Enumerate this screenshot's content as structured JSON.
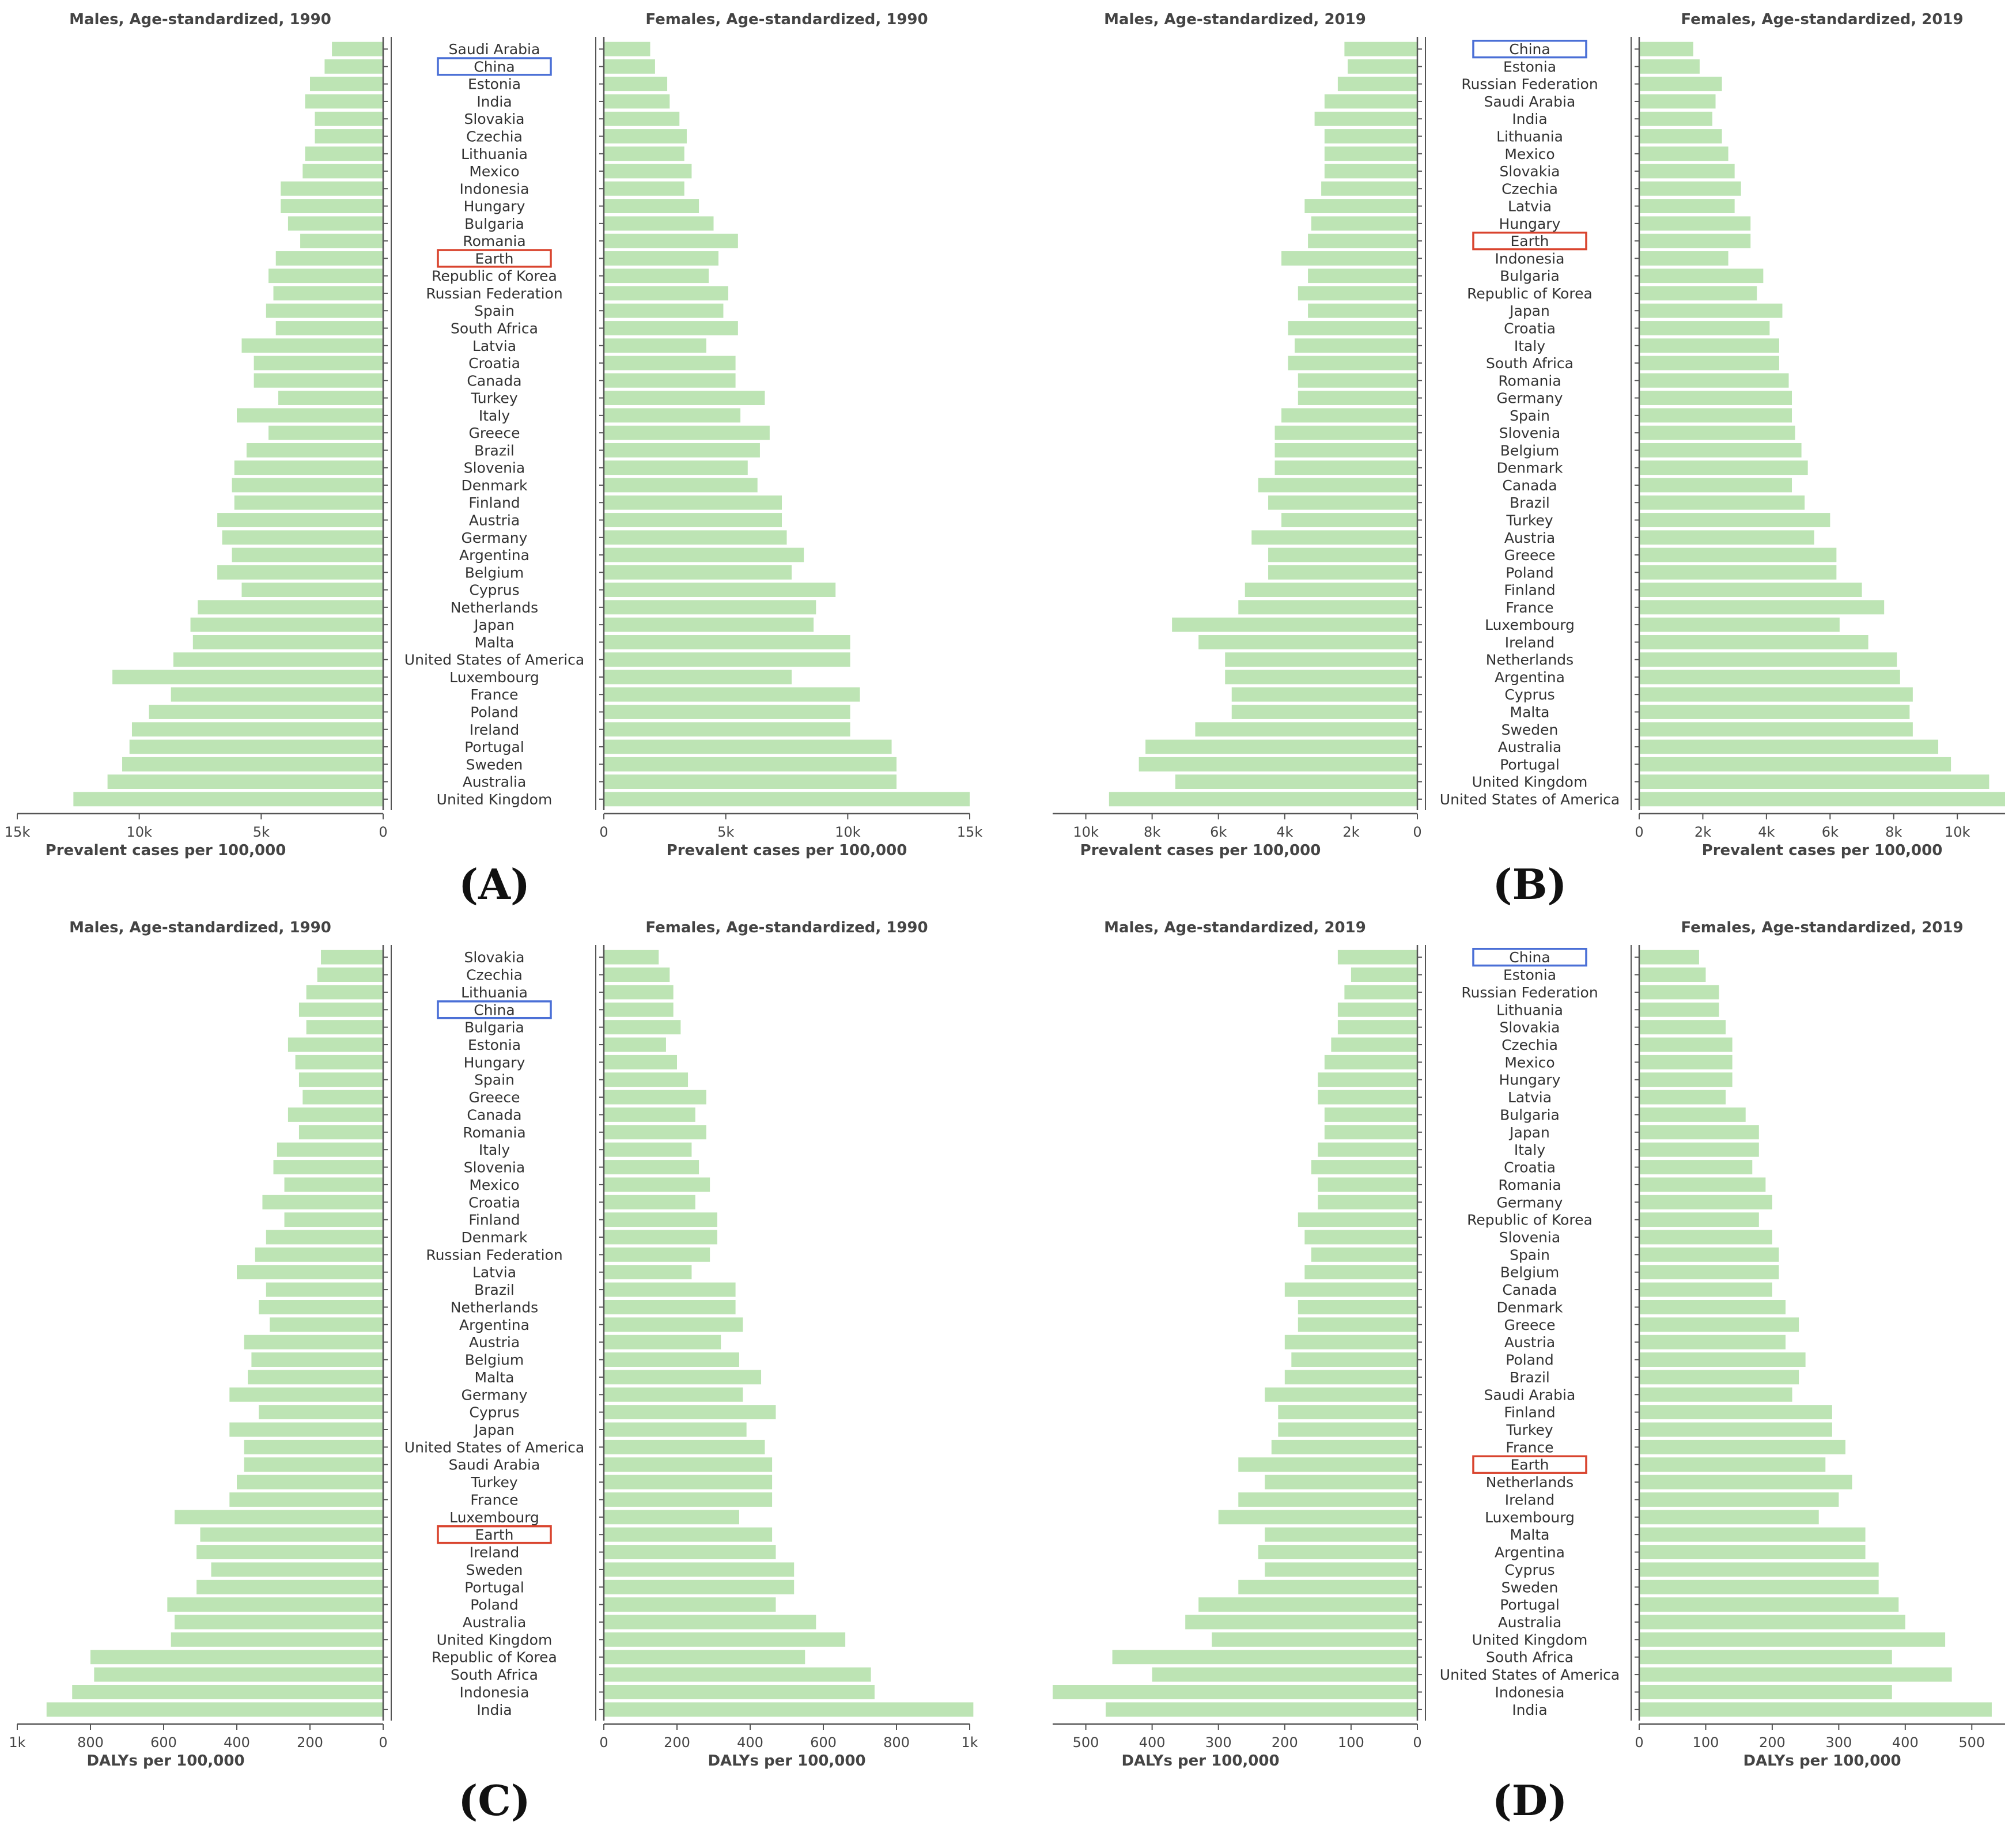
{
  "colors": {
    "bar": "#bde4b4",
    "axis": "#555555",
    "china_box": "#4a6fd6",
    "earth_box": "#d9442e",
    "text": "#333333"
  },
  "x_ticks": {
    "A": [
      {
        "value": 15000,
        "label": "15k"
      },
      {
        "value": 10000,
        "label": "10k"
      },
      {
        "value": 5000,
        "label": "5k"
      },
      {
        "value": 0,
        "label": "0"
      }
    ],
    "B_m": [
      {
        "value": 10000,
        "label": "10k"
      },
      {
        "value": 8000,
        "label": "8k"
      },
      {
        "value": 6000,
        "label": "6k"
      },
      {
        "value": 4000,
        "label": "4k"
      },
      {
        "value": 2000,
        "label": "2k"
      },
      {
        "value": 0,
        "label": "0"
      }
    ],
    "B_f": [
      {
        "value": 0,
        "label": "0"
      },
      {
        "value": 2000,
        "label": "2k"
      },
      {
        "value": 4000,
        "label": "4k"
      },
      {
        "value": 6000,
        "label": "6k"
      },
      {
        "value": 8000,
        "label": "8k"
      },
      {
        "value": 10000,
        "label": "10k"
      }
    ],
    "A_f": [
      {
        "value": 0,
        "label": "0"
      },
      {
        "value": 5000,
        "label": "5k"
      },
      {
        "value": 10000,
        "label": "10k"
      },
      {
        "value": 15000,
        "label": "15k"
      }
    ],
    "C_m": [
      {
        "value": 1000,
        "label": "1k"
      },
      {
        "value": 800,
        "label": "800"
      },
      {
        "value": 600,
        "label": "600"
      },
      {
        "value": 400,
        "label": "400"
      },
      {
        "value": 200,
        "label": "200"
      },
      {
        "value": 0,
        "label": "0"
      }
    ],
    "C_f": [
      {
        "value": 0,
        "label": "0"
      },
      {
        "value": 200,
        "label": "200"
      },
      {
        "value": 400,
        "label": "400"
      },
      {
        "value": 600,
        "label": "600"
      },
      {
        "value": 800,
        "label": "800"
      },
      {
        "value": 1000,
        "label": "1k"
      }
    ],
    "D_m": [
      {
        "value": 500,
        "label": "500"
      },
      {
        "value": 400,
        "label": "400"
      },
      {
        "value": 300,
        "label": "300"
      },
      {
        "value": 200,
        "label": "200"
      },
      {
        "value": 100,
        "label": "100"
      },
      {
        "value": 0,
        "label": "0"
      }
    ],
    "D_f": [
      {
        "value": 0,
        "label": "0"
      },
      {
        "value": 100,
        "label": "100"
      },
      {
        "value": 200,
        "label": "200"
      },
      {
        "value": 300,
        "label": "300"
      },
      {
        "value": 400,
        "label": "400"
      },
      {
        "value": 500,
        "label": "500"
      }
    ]
  },
  "chart_data": [
    {
      "type": "bar",
      "panel_label": "(A)",
      "metric": "Prevalent cases per 100,000",
      "xlabel_males": "Prevalent cases per 100,000",
      "xlabel_females": "Prevalent cases per 100,000",
      "title_males": "Males, Age-standardized, 1990",
      "title_females": "Females, Age-standardized, 1990",
      "xlim_males": [
        15000,
        0
      ],
      "xlim_females": [
        0,
        15000
      ],
      "highlight_china": "China",
      "highlight_earth": "Earth",
      "categories": [
        "Saudi Arabia",
        "China",
        "Estonia",
        "India",
        "Slovakia",
        "Czechia",
        "Lithuania",
        "Mexico",
        "Indonesia",
        "Hungary",
        "Bulgaria",
        "Romania",
        "Earth",
        "Republic of Korea",
        "Russian Federation",
        "Spain",
        "South Africa",
        "Latvia",
        "Croatia",
        "Canada",
        "Turkey",
        "Italy",
        "Greece",
        "Brazil",
        "Slovenia",
        "Denmark",
        "Finland",
        "Austria",
        "Germany",
        "Argentina",
        "Belgium",
        "Cyprus",
        "Netherlands",
        "Japan",
        "Malta",
        "United States of America",
        "Luxembourg",
        "France",
        "Poland",
        "Ireland",
        "Portugal",
        "Sweden",
        "Australia",
        "United Kingdom"
      ],
      "series": [
        {
          "name": "Males",
          "values": [
            2100,
            2400,
            3000,
            3200,
            2800,
            2800,
            3200,
            3300,
            4200,
            4200,
            3900,
            3400,
            4400,
            4700,
            4500,
            4800,
            4400,
            5800,
            5300,
            5300,
            4300,
            6000,
            4700,
            5600,
            6100,
            6200,
            6100,
            6800,
            6600,
            6200,
            6800,
            5800,
            7600,
            7900,
            7800,
            8600,
            11100,
            8700,
            9600,
            10300,
            10400,
            10700,
            11300,
            12700
          ]
        },
        {
          "name": "Females",
          "values": [
            1900,
            2100,
            2600,
            2700,
            3100,
            3400,
            3300,
            3600,
            3300,
            3900,
            4500,
            5500,
            4700,
            4300,
            5100,
            4900,
            5500,
            4200,
            5400,
            5400,
            6600,
            5600,
            6800,
            6400,
            5900,
            6300,
            7300,
            7300,
            7500,
            8200,
            7700,
            9500,
            8700,
            8600,
            10100,
            10100,
            7700,
            10500,
            10100,
            10100,
            11800,
            12000,
            12000,
            15000
          ]
        }
      ]
    },
    {
      "type": "bar",
      "panel_label": "(B)",
      "metric": "Prevalent cases per 100,000",
      "xlabel_males": "Prevalent cases per 100,000",
      "xlabel_females": "Prevalent cases per 100,000",
      "title_males": "Males, Age-standardized, 2019",
      "title_females": "Females, Age-standardized, 2019",
      "xlim_males": [
        11000,
        0
      ],
      "xlim_females": [
        0,
        11500
      ],
      "highlight_china": "China",
      "highlight_earth": "Earth",
      "categories": [
        "China",
        "Estonia",
        "Russian Federation",
        "Saudi Arabia",
        "India",
        "Lithuania",
        "Mexico",
        "Slovakia",
        "Czechia",
        "Latvia",
        "Hungary",
        "Earth",
        "Indonesia",
        "Bulgaria",
        "Republic of Korea",
        "Japan",
        "Croatia",
        "Italy",
        "South Africa",
        "Romania",
        "Germany",
        "Spain",
        "Slovenia",
        "Belgium",
        "Denmark",
        "Canada",
        "Brazil",
        "Turkey",
        "Austria",
        "Greece",
        "Poland",
        "Finland",
        "France",
        "Luxembourg",
        "Ireland",
        "Netherlands",
        "Argentina",
        "Cyprus",
        "Malta",
        "Sweden",
        "Australia",
        "Portugal",
        "United Kingdom",
        "United States of America"
      ],
      "series": [
        {
          "name": "Males",
          "values": [
            2200,
            2100,
            2400,
            2800,
            3100,
            2800,
            2800,
            2800,
            2900,
            3400,
            3200,
            3300,
            4100,
            3300,
            3600,
            3300,
            3900,
            3700,
            3900,
            3600,
            3600,
            4100,
            4300,
            4300,
            4300,
            4800,
            4500,
            4100,
            5000,
            4500,
            4500,
            5200,
            5400,
            7400,
            6600,
            5800,
            5800,
            5600,
            5600,
            6700,
            8200,
            8400,
            7300,
            9300
          ]
        },
        {
          "name": "Females",
          "values": [
            1700,
            1900,
            2600,
            2400,
            2300,
            2600,
            2800,
            3000,
            3200,
            3000,
            3500,
            3500,
            2800,
            3900,
            3700,
            4500,
            4100,
            4400,
            4400,
            4700,
            4800,
            4800,
            4900,
            5100,
            5300,
            4800,
            5200,
            6000,
            5500,
            6200,
            6200,
            7000,
            7700,
            6300,
            7200,
            8100,
            8200,
            8600,
            8500,
            8600,
            9400,
            9800,
            11000,
            11500
          ]
        }
      ]
    },
    {
      "type": "bar",
      "panel_label": "(C)",
      "metric": "DALYs per 100,000",
      "xlabel_males": "DALYs per 100,000",
      "xlabel_females": "DALYs per 100,000",
      "title_males": "Males, Age-standardized, 1990",
      "title_females": "Females, Age-standardized, 1990",
      "xlim_males": [
        1000,
        0
      ],
      "xlim_females": [
        0,
        1000
      ],
      "highlight_china": "China",
      "highlight_earth": "Earth",
      "categories": [
        "Slovakia",
        "Czechia",
        "Lithuania",
        "China",
        "Bulgaria",
        "Estonia",
        "Hungary",
        "Spain",
        "Greece",
        "Canada",
        "Romania",
        "Italy",
        "Slovenia",
        "Mexico",
        "Croatia",
        "Finland",
        "Denmark",
        "Russian Federation",
        "Latvia",
        "Brazil",
        "Netherlands",
        "Argentina",
        "Austria",
        "Belgium",
        "Malta",
        "Germany",
        "Cyprus",
        "Japan",
        "United States of America",
        "Saudi Arabia",
        "Turkey",
        "France",
        "Luxembourg",
        "Earth",
        "Ireland",
        "Sweden",
        "Portugal",
        "Poland",
        "Australia",
        "United Kingdom",
        "Republic of Korea",
        "South Africa",
        "Indonesia",
        "India"
      ],
      "series": [
        {
          "name": "Males",
          "values": [
            170,
            180,
            210,
            230,
            210,
            260,
            240,
            230,
            220,
            260,
            230,
            290,
            300,
            270,
            330,
            270,
            320,
            350,
            400,
            320,
            340,
            310,
            380,
            360,
            370,
            420,
            340,
            420,
            380,
            380,
            400,
            420,
            570,
            500,
            510,
            470,
            510,
            590,
            570,
            580,
            800,
            790,
            850,
            920
          ]
        },
        {
          "name": "Females",
          "values": [
            150,
            180,
            190,
            190,
            210,
            170,
            200,
            230,
            280,
            250,
            280,
            240,
            260,
            290,
            250,
            310,
            310,
            290,
            240,
            360,
            360,
            380,
            320,
            370,
            430,
            380,
            470,
            390,
            440,
            460,
            460,
            460,
            370,
            460,
            470,
            520,
            520,
            470,
            580,
            660,
            550,
            730,
            740,
            1010
          ]
        }
      ]
    },
    {
      "type": "bar",
      "panel_label": "(D)",
      "metric": "DALYs per 100,000",
      "xlabel_males": "DALYs per 100,000",
      "xlabel_females": "DALYs per 100,000",
      "title_males": "Males, Age-standardized, 2019",
      "title_females": "Females, Age-standardized, 2019",
      "xlim_males": [
        550,
        0
      ],
      "xlim_females": [
        0,
        550
      ],
      "highlight_china": "China",
      "highlight_earth": "Earth",
      "categories": [
        "China",
        "Estonia",
        "Russian Federation",
        "Lithuania",
        "Slovakia",
        "Czechia",
        "Mexico",
        "Hungary",
        "Latvia",
        "Bulgaria",
        "Japan",
        "Italy",
        "Croatia",
        "Romania",
        "Germany",
        "Republic of Korea",
        "Slovenia",
        "Spain",
        "Belgium",
        "Canada",
        "Denmark",
        "Greece",
        "Austria",
        "Poland",
        "Brazil",
        "Saudi Arabia",
        "Finland",
        "Turkey",
        "France",
        "Earth",
        "Netherlands",
        "Ireland",
        "Luxembourg",
        "Malta",
        "Argentina",
        "Cyprus",
        "Sweden",
        "Portugal",
        "Australia",
        "United Kingdom",
        "South Africa",
        "United States of America",
        "Indonesia",
        "India"
      ],
      "series": [
        {
          "name": "Males",
          "values": [
            120,
            100,
            110,
            120,
            120,
            130,
            140,
            150,
            150,
            140,
            140,
            150,
            160,
            150,
            150,
            180,
            170,
            160,
            170,
            200,
            180,
            180,
            200,
            190,
            200,
            230,
            210,
            210,
            220,
            270,
            230,
            270,
            300,
            230,
            240,
            230,
            270,
            330,
            350,
            310,
            460,
            400,
            550,
            470
          ]
        },
        {
          "name": "Females",
          "values": [
            90,
            100,
            120,
            120,
            130,
            140,
            140,
            140,
            130,
            160,
            180,
            180,
            170,
            190,
            200,
            180,
            200,
            210,
            210,
            200,
            220,
            240,
            220,
            250,
            240,
            230,
            290,
            290,
            310,
            280,
            320,
            300,
            270,
            340,
            340,
            360,
            360,
            390,
            400,
            460,
            380,
            470,
            380,
            530
          ]
        }
      ]
    }
  ]
}
